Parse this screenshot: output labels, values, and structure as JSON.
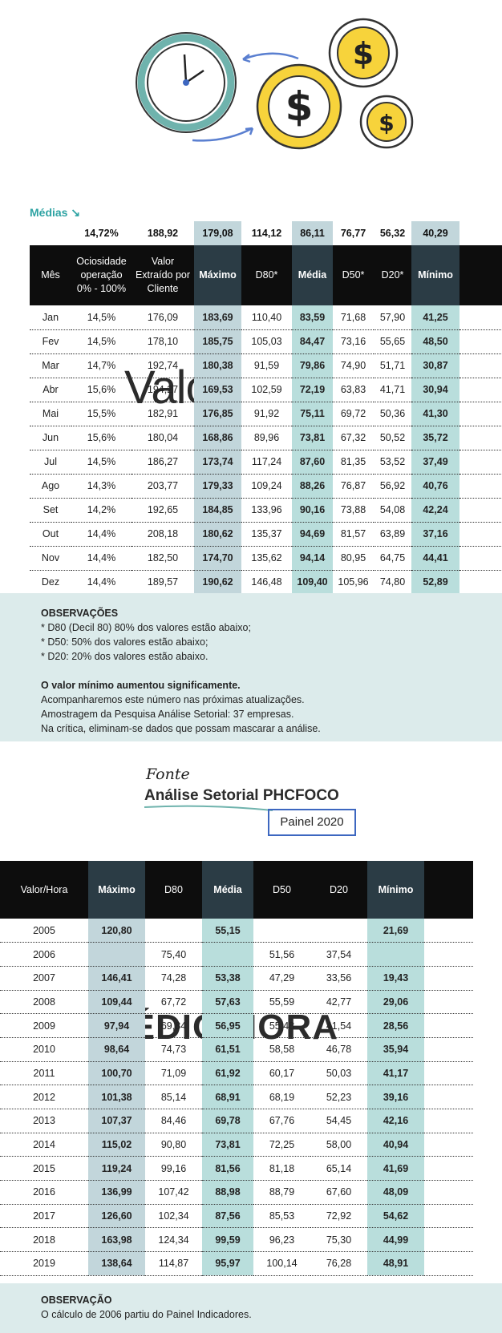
{
  "hero": {
    "title_part1": "Valor",
    "title_part2": "MÉDIO/HORA"
  },
  "medias_label": "Médias ↘",
  "table1": {
    "averages": [
      "",
      "14,72%",
      "188,92",
      "179,08",
      "114,12",
      "86,11",
      "76,77",
      "56,32",
      "40,29"
    ],
    "headers": [
      "Mês",
      "Ociosidade operação 0% - 100%",
      "Valor Extraído por Cliente",
      "Máximo",
      "D80*",
      "Média",
      "D50*",
      "D20*",
      "Mínimo"
    ],
    "rows": [
      [
        "Jan",
        "14,5%",
        "176,09",
        "183,69",
        "110,40",
        "83,59",
        "71,68",
        "57,90",
        "41,25"
      ],
      [
        "Fev",
        "14,5%",
        "178,10",
        "185,75",
        "105,03",
        "84,47",
        "73,16",
        "55,65",
        "48,50"
      ],
      [
        "Mar",
        "14,7%",
        "192,74",
        "180,38",
        "91,59",
        "79,86",
        "74,90",
        "51,71",
        "30,87"
      ],
      [
        "Abr",
        "15,6%",
        "194,27",
        "169,53",
        "102,59",
        "72,19",
        "63,83",
        "41,71",
        "30,94"
      ],
      [
        "Mai",
        "15,5%",
        "182,91",
        "176,85",
        "91,92",
        "75,11",
        "69,72",
        "50,36",
        "41,30"
      ],
      [
        "Jun",
        "15,6%",
        "180,04",
        "168,86",
        "89,96",
        "73,81",
        "67,32",
        "50,52",
        "35,72"
      ],
      [
        "Jul",
        "14,5%",
        "186,27",
        "173,74",
        "117,24",
        "87,60",
        "81,35",
        "53,52",
        "37,49"
      ],
      [
        "Ago",
        "14,3%",
        "203,77",
        "179,33",
        "109,24",
        "88,26",
        "76,87",
        "56,92",
        "40,76"
      ],
      [
        "Set",
        "14,2%",
        "192,65",
        "184,85",
        "133,96",
        "90,16",
        "73,88",
        "54,08",
        "42,24"
      ],
      [
        "Out",
        "14,4%",
        "208,18",
        "180,62",
        "135,37",
        "94,69",
        "81,57",
        "63,89",
        "37,16"
      ],
      [
        "Nov",
        "14,4%",
        "182,50",
        "174,70",
        "135,62",
        "94,14",
        "80,95",
        "64,75",
        "44,41"
      ],
      [
        "Dez",
        "14,4%",
        "189,57",
        "190,62",
        "146,48",
        "109,40",
        "105,96",
        "74,80",
        "52,89"
      ]
    ]
  },
  "observacoes": {
    "heading": "OBSERVAÇÕES",
    "lines": [
      "* D80 (Decil 80) 80% dos valores estão abaixo;",
      "* D50: 50% dos valores estão abaixo;",
      "* D20: 20% dos valores estão abaixo."
    ],
    "bold_line": "O valor mínimo aumentou significamente.",
    "lines2": [
      "Acompanharemos este número nas próximas atualizações.",
      "Amostragem da Pesquisa Análise Setorial: 37 empresas.",
      "Na crítica, eliminam-se dados que possam mascarar a análise."
    ]
  },
  "source": {
    "fonte": "Fonte",
    "title": "Análise Setorial PHCFOCO",
    "badge": "Painel 2020"
  },
  "table2": {
    "headers": [
      "Valor/Hora",
      "Máximo",
      "D80",
      "Média",
      "D50",
      "D20",
      "Mínimo"
    ],
    "rows": [
      [
        "2005",
        "120,80",
        "",
        "55,15",
        "",
        "",
        "21,69"
      ],
      [
        "2006",
        "",
        "75,40",
        "",
        "51,56",
        "37,54",
        ""
      ],
      [
        "2007",
        "146,41",
        "74,28",
        "53,38",
        "47,29",
        "33,56",
        "19,43"
      ],
      [
        "2008",
        "109,44",
        "67,72",
        "57,63",
        "55,59",
        "42,77",
        "29,06"
      ],
      [
        "2009",
        "97,94",
        "69,84",
        "56,95",
        "55,48",
        "41,54",
        "28,56"
      ],
      [
        "2010",
        "98,64",
        "74,73",
        "61,51",
        "58,58",
        "46,78",
        "35,94"
      ],
      [
        "2011",
        "100,70",
        "71,09",
        "61,92",
        "60,17",
        "50,03",
        "41,17"
      ],
      [
        "2012",
        "101,38",
        "85,14",
        "68,91",
        "68,19",
        "52,23",
        "39,16"
      ],
      [
        "2013",
        "107,37",
        "84,46",
        "69,78",
        "67,76",
        "54,45",
        "42,16"
      ],
      [
        "2014",
        "115,02",
        "90,80",
        "73,81",
        "72,25",
        "58,00",
        "40,94"
      ],
      [
        "2015",
        "119,24",
        "99,16",
        "81,56",
        "81,18",
        "65,14",
        "41,69"
      ],
      [
        "2016",
        "136,99",
        "107,42",
        "88,98",
        "88,79",
        "67,60",
        "48,09"
      ],
      [
        "2017",
        "126,60",
        "102,34",
        "87,56",
        "85,53",
        "72,92",
        "54,62"
      ],
      [
        "2018",
        "163,98",
        "124,34",
        "99,59",
        "96,23",
        "75,30",
        "44,99"
      ],
      [
        "2019",
        "138,64",
        "114,87",
        "95,97",
        "100,14",
        "76,28",
        "48,91"
      ]
    ]
  },
  "observacao2": {
    "heading": "OBSERVAÇÃO",
    "text": "O cálculo de 2006 partiu do Painel Indicadores."
  }
}
